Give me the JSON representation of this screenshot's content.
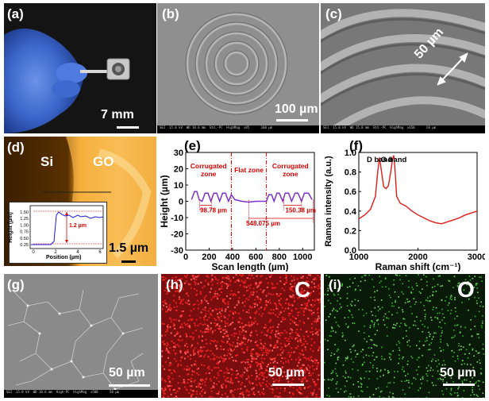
{
  "panels": {
    "a": {
      "label": "(a)",
      "scale": "7 mm"
    },
    "b": {
      "label": "(b)",
      "scale": "100 µm",
      "infobar": "SEI  15.0 kV  WD 18.6 mm  Std.-PC  HighMag  x85      100 µm"
    },
    "c": {
      "label": "(c)",
      "annotation": "50 µm",
      "infobar": "SEI  15.0 kV  WD 15.8 mm  Std.-PC  HighMag  x650      20 µm"
    },
    "d": {
      "label": "(d)",
      "left_text": "Si",
      "right_text": "GO",
      "scale": "1.5 µm",
      "inset": {
        "ylabel": "Height (µm)",
        "xlabel": "Position (µm)",
        "step": "1.2 µm",
        "yticks": [
          "0.25",
          "0.50",
          "0.75",
          "1.00",
          "1.25",
          "1.50"
        ],
        "xticks": [
          "0",
          "2",
          "4",
          "6"
        ]
      }
    },
    "e": {
      "label": "(e)"
    },
    "f": {
      "label": "(f)"
    },
    "g": {
      "label": "(g)",
      "scale": "50 µm",
      "infobar": "SEI  15.0 kV  WD 10.6 mm  High-PC  HighMag  x500      50 µm"
    },
    "h": {
      "label": "(h)",
      "element": "C",
      "scale": "50 µm"
    },
    "i": {
      "label": "(i)",
      "element": "O",
      "scale": "50 µm"
    }
  },
  "chart_data": [
    {
      "type": "line",
      "panel": "e",
      "xlabel": "Scan length (µm)",
      "ylabel": "Height (µm)",
      "xlim": [
        0,
        1100
      ],
      "ylim": [
        -30,
        30
      ],
      "xticks": [
        0,
        200,
        400,
        600,
        800,
        1000
      ],
      "yticks": [
        -30,
        -20,
        -10,
        0,
        10,
        20,
        30
      ],
      "zones": [
        {
          "name": "Corrugated zone",
          "x": [
            0,
            390
          ]
        },
        {
          "name": "Flat zone",
          "x": [
            390,
            690
          ]
        },
        {
          "name": "Corrugated zone",
          "x": [
            690,
            1100
          ]
        }
      ],
      "dimensions": [
        {
          "label": "98.78 µm",
          "from": 120,
          "to": 220
        },
        {
          "label": "150.38 µm",
          "from": 840,
          "to": 990
        },
        {
          "label": "548.075 µm",
          "from": 540,
          "to": 1090
        }
      ],
      "series": [
        {
          "x": [
            50,
            75,
            95,
            115,
            140,
            165,
            190,
            215,
            240,
            265,
            290,
            315,
            340,
            365,
            390,
            420,
            480,
            540,
            600,
            660,
            690,
            710,
            735,
            755,
            780,
            800,
            830,
            850,
            880,
            905,
            935,
            960,
            990,
            1015,
            1050,
            1080
          ],
          "y": [
            1,
            6,
            6,
            1,
            0,
            5,
            5,
            0,
            5,
            5,
            0,
            5,
            5,
            0,
            4,
            1,
            0,
            -0.5,
            0,
            0,
            0,
            4,
            4,
            0,
            5,
            5,
            0,
            5,
            5,
            0,
            5,
            5,
            0,
            5,
            5,
            1
          ]
        }
      ],
      "color": "#7b32c8"
    },
    {
      "type": "line",
      "panel": "f",
      "xlabel": "Raman shift (cm⁻¹)",
      "ylabel": "Raman intensity (a.u.)",
      "xlim": [
        1000,
        3000
      ],
      "ylim": [
        0,
        1.0
      ],
      "xticks": [
        1000,
        2000,
        3000
      ],
      "yticks": [
        0.0,
        0.2,
        0.4,
        0.6,
        0.8,
        1.0
      ],
      "annotations": [
        {
          "text": "D band",
          "x": 1350
        },
        {
          "text": "G band",
          "x": 1590
        }
      ],
      "series": [
        {
          "x": [
            1000,
            1100,
            1200,
            1280,
            1320,
            1350,
            1380,
            1420,
            1460,
            1500,
            1540,
            1570,
            1590,
            1610,
            1640,
            1700,
            1800,
            1900,
            2000,
            2100,
            2200,
            2300,
            2400,
            2500,
            2600,
            2700,
            2800,
            2900,
            3000
          ],
          "y": [
            0.32,
            0.36,
            0.42,
            0.55,
            0.8,
            0.95,
            0.82,
            0.65,
            0.63,
            0.66,
            0.8,
            0.93,
            0.97,
            0.85,
            0.55,
            0.48,
            0.45,
            0.4,
            0.36,
            0.33,
            0.3,
            0.28,
            0.27,
            0.29,
            0.31,
            0.33,
            0.36,
            0.38,
            0.4
          ]
        }
      ],
      "color": "#e21b1b"
    }
  ]
}
